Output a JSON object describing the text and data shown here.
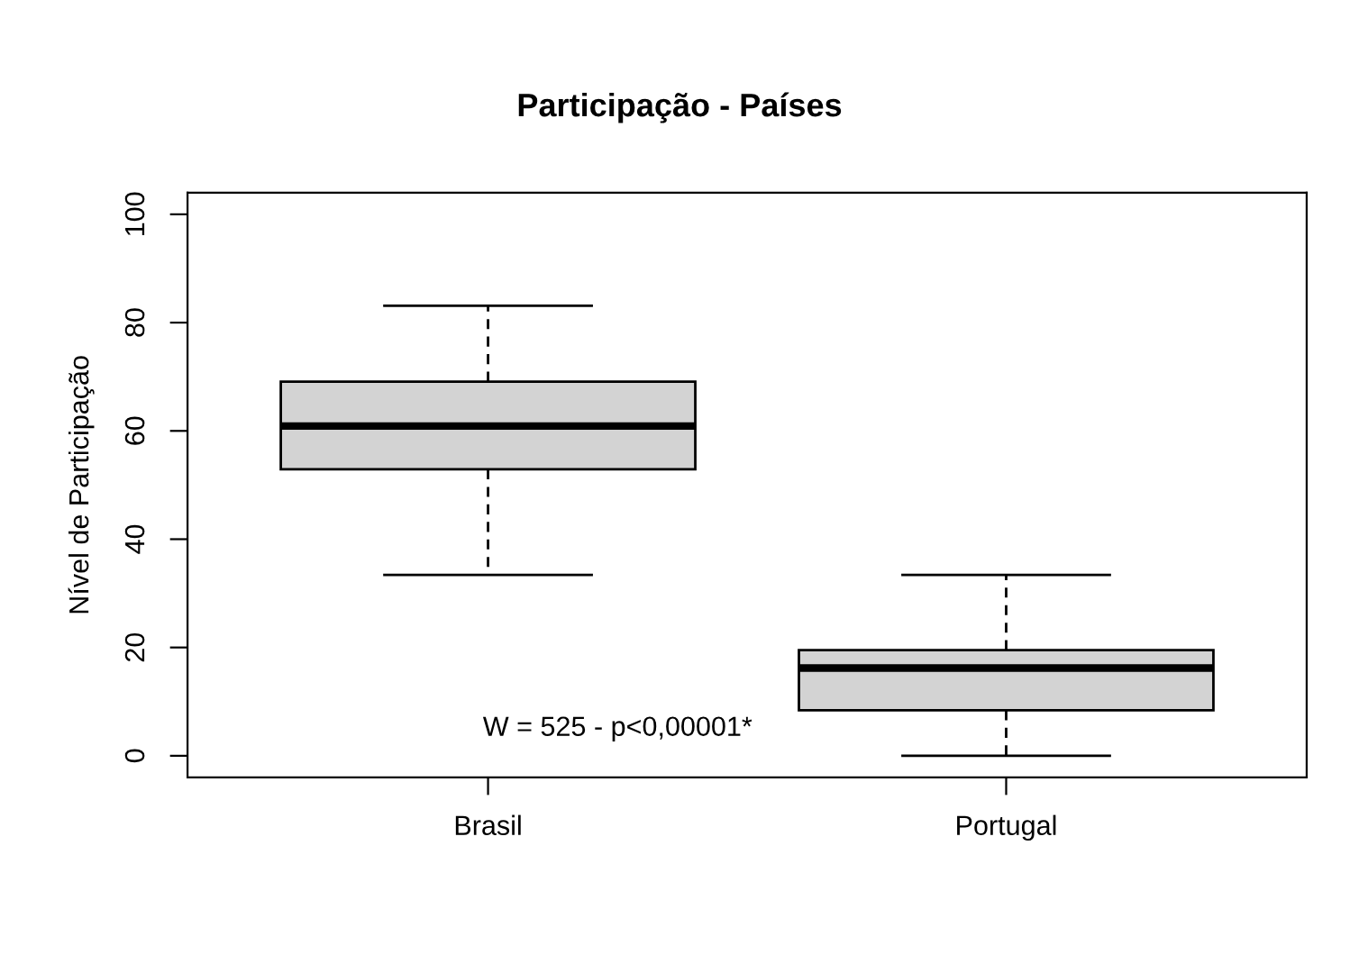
{
  "chart_data": {
    "type": "box",
    "title": "Participação - Países",
    "ylabel": "Nível de Participação",
    "categories": [
      "Brasil",
      "Portugal"
    ],
    "color": "#d3d3d3",
    "boxes": [
      {
        "low": 33.4,
        "q1": 52.9,
        "median": 60.9,
        "q3": 69.1,
        "high": 83.1
      },
      {
        "low": 0,
        "q1": 8.4,
        "median": 16.2,
        "q3": 19.5,
        "high": 33.4
      }
    ],
    "ylim": [
      -4,
      104
    ],
    "yticks": [
      0,
      20,
      40,
      60,
      80,
      100
    ],
    "grid": false,
    "annotations": [
      "W = 525 - p<0,00001*"
    ]
  }
}
